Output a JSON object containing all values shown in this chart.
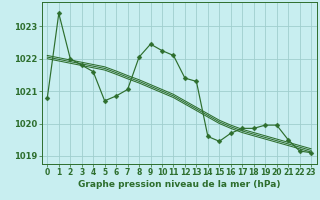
{
  "title": "Graphe pression niveau de la mer (hPa)",
  "background_color": "#c8eef0",
  "grid_color": "#a0cece",
  "line_color": "#2d6e2d",
  "x_values": [
    0,
    1,
    2,
    3,
    4,
    5,
    6,
    7,
    8,
    9,
    10,
    11,
    12,
    13,
    14,
    15,
    16,
    17,
    18,
    19,
    20,
    21,
    22,
    23
  ],
  "series_main": [
    1020.8,
    1023.4,
    1022.0,
    1021.8,
    1021.6,
    1020.7,
    1020.85,
    1021.05,
    1022.05,
    1022.45,
    1022.25,
    1022.1,
    1021.4,
    1021.3,
    1019.6,
    1019.45,
    1019.7,
    1019.85,
    1019.85,
    1019.95,
    1019.95,
    1019.5,
    1019.15,
    1019.1
  ],
  "series_line1": [
    1022.0,
    1021.93,
    1021.86,
    1021.79,
    1021.72,
    1021.65,
    1021.52,
    1021.38,
    1021.25,
    1021.1,
    1020.95,
    1020.8,
    1020.6,
    1020.4,
    1020.2,
    1020.0,
    1019.85,
    1019.72,
    1019.62,
    1019.52,
    1019.42,
    1019.32,
    1019.22,
    1019.12
  ],
  "series_line2": [
    1022.05,
    1021.98,
    1021.91,
    1021.84,
    1021.77,
    1021.7,
    1021.57,
    1021.43,
    1021.3,
    1021.15,
    1021.0,
    1020.85,
    1020.65,
    1020.45,
    1020.25,
    1020.05,
    1019.9,
    1019.77,
    1019.67,
    1019.57,
    1019.47,
    1019.37,
    1019.27,
    1019.17
  ],
  "series_line3": [
    1022.1,
    1022.03,
    1021.96,
    1021.89,
    1021.82,
    1021.75,
    1021.62,
    1021.48,
    1021.35,
    1021.2,
    1021.05,
    1020.9,
    1020.7,
    1020.5,
    1020.3,
    1020.1,
    1019.95,
    1019.82,
    1019.72,
    1019.62,
    1019.52,
    1019.42,
    1019.32,
    1019.22
  ],
  "ylim": [
    1018.75,
    1023.75
  ],
  "yticks": [
    1019,
    1020,
    1021,
    1022,
    1023
  ],
  "xlim": [
    -0.5,
    23.5
  ],
  "marker_size": 2.5,
  "title_fontsize": 6.5,
  "tick_fontsize": 5.5,
  "ytick_fontsize": 6.0
}
